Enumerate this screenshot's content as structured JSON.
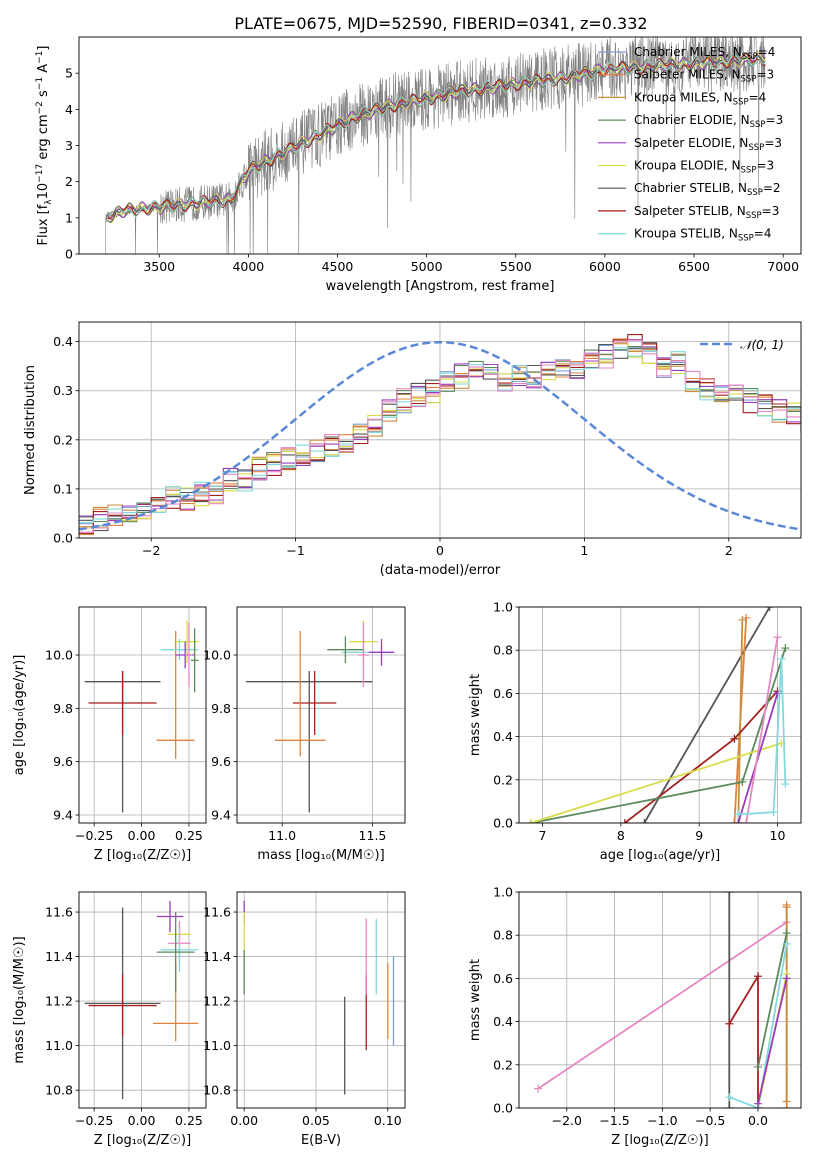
{
  "title": "PLATE=0675, MJD=52590, FIBERID=0341, z=0.332",
  "colors": {
    "Chabrier MILES": "#7f9fd0",
    "Salpeter MILES": "#e3823e",
    "Kroupa MILES": "#c88f3f",
    "Chabrier ELODIE": "#5d8a5d",
    "Salpeter ELODIE": "#9a3dbd",
    "Kroupa ELODIE": "#d9dd4a",
    "Chabrier STELIB": "#555555",
    "Salpeter STELIB": "#a31f1f",
    "Kroupa STELIB": "#82d9dd",
    "pink": "#e487c3",
    "data": "#808080"
  },
  "chart_data": [
    {
      "type": "line",
      "panel": "spectrum",
      "xlabel": "wavelength [Angstrom, rest frame]",
      "ylabel_main": "Flux [f",
      "ylabel_sub": "λ",
      "ylabel_rest": "10",
      "ylabel_exp1": "−17",
      "ylabel_mid": " erg cm",
      "ylabel_exp2": "−2",
      "ylabel_s": " s",
      "ylabel_exp3": "−1",
      "ylabel_A": " A",
      "ylabel_exp4": "−1",
      "ylabel_end": "]",
      "xlim": [
        3050,
        7100
      ],
      "ylim": [
        0,
        6
      ],
      "xticks": [
        3500,
        4000,
        4500,
        5000,
        5500,
        6000,
        6500,
        7000
      ],
      "yticks": [
        0,
        1,
        2,
        3,
        4,
        5
      ],
      "legend_position": "top-right",
      "legend": [
        {
          "name": "Chabrier MILES, N",
          "sub": "SSP",
          "suffix": "=4"
        },
        {
          "name": "Salpeter MILES, N",
          "sub": "SSP",
          "suffix": "=3"
        },
        {
          "name": "Kroupa MILES, N",
          "sub": "SSP",
          "suffix": "=4"
        },
        {
          "name": "Chabrier ELODIE, N",
          "sub": "SSP",
          "suffix": "=3"
        },
        {
          "name": "Salpeter ELODIE, N",
          "sub": "SSP",
          "suffix": "=3"
        },
        {
          "name": "Kroupa ELODIE, N",
          "sub": "SSP",
          "suffix": "=3"
        },
        {
          "name": "Chabrier STELIB, N",
          "sub": "SSP",
          "suffix": "=2"
        },
        {
          "name": "Salpeter STELIB, N",
          "sub": "SSP",
          "suffix": "=3"
        },
        {
          "name": "Kroupa STELIB, N",
          "sub": "SSP",
          "suffix": "=4"
        }
      ],
      "continuum": [
        [
          3200,
          1.0
        ],
        [
          3300,
          1.2
        ],
        [
          3500,
          1.3
        ],
        [
          3700,
          1.4
        ],
        [
          3900,
          1.5
        ],
        [
          4000,
          2.3
        ],
        [
          4200,
          2.8
        ],
        [
          4400,
          3.3
        ],
        [
          4600,
          3.8
        ],
        [
          4800,
          4.1
        ],
        [
          5000,
          4.3
        ],
        [
          5200,
          4.5
        ],
        [
          5500,
          4.7
        ],
        [
          5800,
          4.9
        ],
        [
          6000,
          5.1
        ],
        [
          6300,
          5.2
        ],
        [
          6600,
          5.3
        ],
        [
          6900,
          5.4
        ]
      ]
    },
    {
      "type": "line",
      "panel": "residual histogram",
      "xlabel": "(data-model)/error",
      "ylabel": "Normed distribution",
      "xlim": [
        -2.5,
        2.5
      ],
      "ylim": [
        0,
        0.44
      ],
      "xticks": [
        -2,
        -1,
        0,
        1,
        2
      ],
      "yticks": [
        0.0,
        0.1,
        0.2,
        0.3,
        0.4
      ],
      "legend_position": "top-right",
      "legend": [
        {
          "name": "𝒩(0, 1)"
        }
      ],
      "bin_width": 0.1,
      "bins_start": -2.5,
      "hist_envelope": [
        0.03,
        0.04,
        0.05,
        0.05,
        0.06,
        0.07,
        0.08,
        0.08,
        0.09,
        0.09,
        0.12,
        0.12,
        0.14,
        0.15,
        0.16,
        0.17,
        0.18,
        0.19,
        0.19,
        0.21,
        0.23,
        0.26,
        0.28,
        0.29,
        0.3,
        0.32,
        0.33,
        0.34,
        0.33,
        0.32,
        0.33,
        0.33,
        0.34,
        0.34,
        0.35,
        0.36,
        0.37,
        0.39,
        0.39,
        0.38,
        0.35,
        0.36,
        0.32,
        0.3,
        0.3,
        0.29,
        0.28,
        0.27,
        0.26,
        0.25,
        0.24,
        0.23,
        0.22,
        0.2,
        0.18,
        0.17,
        0.15,
        0.13,
        0.12,
        0.11,
        0.1,
        0.09,
        0.08,
        0.07,
        0.06,
        0.06,
        0.05,
        0.04,
        0.04,
        0.035,
        0.03,
        0.03,
        0.03,
        0.03,
        0.03,
        0.03,
        0.03,
        0.03,
        0.03,
        0.03
      ],
      "normal_curve": {
        "mean": 0,
        "sigma": 1
      }
    },
    {
      "type": "scatter",
      "panel": "age vs Z",
      "xlabel": "Z [log₁₀(Z/Z☉)]",
      "ylabel": "age  [log₁₀(age/yr)]",
      "xlim": [
        -0.33,
        0.34
      ],
      "ylim": [
        9.37,
        10.18
      ],
      "xticks": [
        -0.25,
        0.0,
        0.25
      ],
      "yticks": [
        9.4,
        9.6,
        9.8,
        10.0
      ],
      "points": [
        {
          "model": "Chabrier STELIB",
          "x": -0.1,
          "xerr": 0.2,
          "y": 9.9,
          "yerr": [
            0.49,
            0.04
          ]
        },
        {
          "model": "Salpeter STELIB",
          "x": -0.1,
          "xerr": 0.18,
          "y": 9.82,
          "yerr": 0.12
        },
        {
          "model": "Salpeter MILES",
          "x": 0.18,
          "xerr": 0.1,
          "y": 9.68,
          "yerr": [
            0.07,
            0.41
          ]
        },
        {
          "model": "Kroupa ELODIE",
          "x": 0.24,
          "xerr": 0.06,
          "y": 10.05,
          "yerr": 0.08
        },
        {
          "model": "Kroupa STELIB",
          "x": 0.2,
          "xerr": 0.1,
          "y": 10.02,
          "yerr": 0.04
        },
        {
          "model": "Salpeter ELODIE",
          "x": 0.23,
          "xerr": 0.05,
          "y": 10.0,
          "yerr": 0.05
        },
        {
          "model": "pink",
          "x": 0.25,
          "xerr": 0.02,
          "y": 10.0,
          "yerr": 0.12
        },
        {
          "model": "Chabrier ELODIE",
          "x": 0.28,
          "xerr": 0.02,
          "y": 9.98,
          "yerr": 0.12
        }
      ]
    },
    {
      "type": "scatter",
      "panel": "age vs mass",
      "xlabel": "mass [log₁₀(M/M☉)]",
      "xlim": [
        10.75,
        11.68
      ],
      "ylim": [
        9.37,
        10.18
      ],
      "xticks": [
        11.0,
        11.5
      ],
      "yticks": [
        9.4,
        9.6,
        9.8,
        10.0
      ],
      "points": [
        {
          "model": "Chabrier STELIB",
          "x": 11.15,
          "xerr": 0.35,
          "y": 9.9,
          "yerr": [
            0.49,
            0.04
          ]
        },
        {
          "model": "Salpeter STELIB",
          "x": 11.18,
          "xerr": 0.12,
          "y": 9.82,
          "yerr": 0.12
        },
        {
          "model": "Salpeter MILES",
          "x": 11.1,
          "xerr": 0.14,
          "y": 9.68,
          "yerr": [
            0.06,
            0.41
          ]
        },
        {
          "model": "Kroupa ELODIE",
          "x": 11.45,
          "xerr": 0.08,
          "y": 10.05,
          "yerr": 0.08
        },
        {
          "model": "Kroupa STELIB",
          "x": 11.45,
          "xerr": 0.12,
          "y": 10.01,
          "yerr": 0.05
        },
        {
          "model": "Salpeter ELODIE",
          "x": 11.55,
          "xerr": 0.07,
          "y": 10.01,
          "yerr": 0.05
        },
        {
          "model": "pink",
          "x": 11.45,
          "xerr": 0.03,
          "y": 10.0,
          "yerr": 0.12
        },
        {
          "model": "Chabrier ELODIE",
          "x": 11.35,
          "xerr": 0.1,
          "y": 10.02,
          "yerr": 0.05
        }
      ]
    },
    {
      "type": "line",
      "panel": "mass weight vs age",
      "xlabel": "age  [log₁₀(age/yr)]",
      "ylabel": "mass weight",
      "xlim": [
        6.7,
        10.3
      ],
      "ylim": [
        0,
        1.0
      ],
      "xticks": [
        7,
        8,
        9,
        10
      ],
      "yticks": [
        0.0,
        0.2,
        0.4,
        0.6,
        0.8,
        1.0
      ],
      "series": [
        {
          "model": "Chabrier STELIB",
          "x": [
            8.3,
            9.9
          ],
          "y": [
            0.0,
            1.0
          ]
        },
        {
          "model": "Salpeter MILES",
          "x": [
            9.45,
            9.6
          ],
          "y": [
            0.0,
            0.95
          ]
        },
        {
          "model": "Kroupa MILES",
          "x": [
            9.5,
            9.55
          ],
          "y": [
            0.0,
            0.94
          ]
        },
        {
          "model": "Salpeter STELIB",
          "x": [
            8.05,
            9.45,
            10.0
          ],
          "y": [
            0.0,
            0.39,
            0.61
          ]
        },
        {
          "model": "Chabrier ELODIE",
          "x": [
            6.85,
            9.55,
            10.1
          ],
          "y": [
            0.0,
            0.19,
            0.81
          ]
        },
        {
          "model": "Kroupa ELODIE",
          "x": [
            6.85,
            10.05
          ],
          "y": [
            0.0,
            0.37
          ]
        },
        {
          "model": "Salpeter ELODIE",
          "x": [
            9.5,
            10.0
          ],
          "y": [
            0.0,
            0.6
          ]
        },
        {
          "model": "pink",
          "x": [
            9.6,
            10.0
          ],
          "y": [
            0.0,
            0.86
          ]
        },
        {
          "model": "Kroupa STELIB",
          "x": [
            9.5,
            9.95,
            10.05,
            10.1
          ],
          "y": [
            0.04,
            0.05,
            0.76,
            0.18
          ]
        }
      ]
    },
    {
      "type": "scatter",
      "panel": "mass vs Z",
      "xlabel": "Z [log₁₀(Z/Z☉)]",
      "ylabel": "mass [log₁₀(M/M☉)]",
      "xlim": [
        -0.33,
        0.34
      ],
      "ylim": [
        10.72,
        11.69
      ],
      "xticks": [
        -0.25,
        0.0,
        0.25
      ],
      "yticks": [
        10.8,
        11.0,
        11.2,
        11.4,
        11.6
      ],
      "points": [
        {
          "model": "Chabrier STELIB",
          "x": -0.1,
          "xerr": 0.2,
          "y": 11.19,
          "yerr": 0.43
        },
        {
          "model": "Salpeter STELIB",
          "x": -0.1,
          "xerr": 0.18,
          "y": 11.18,
          "yerr": 0.14
        },
        {
          "model": "Salpeter MILES",
          "x": 0.18,
          "xerr": 0.12,
          "y": 11.1,
          "yerr": [
            0.08,
            0.28
          ]
        },
        {
          "model": "Salpeter ELODIE",
          "x": 0.15,
          "xerr": 0.07,
          "y": 11.58,
          "yerr": 0.07
        },
        {
          "model": "Kroupa ELODIE",
          "x": 0.2,
          "xerr": 0.06,
          "y": 11.5,
          "yerr": 0.05
        },
        {
          "model": "pink",
          "x": 0.2,
          "xerr": 0.06,
          "y": 11.46,
          "yerr": 0.1
        },
        {
          "model": "Kroupa STELIB",
          "x": 0.2,
          "xerr": 0.1,
          "y": 11.43,
          "yerr": 0.1
        },
        {
          "model": "Chabrier ELODIE",
          "x": 0.18,
          "xerr": 0.1,
          "y": 11.42,
          "yerr": 0.18
        }
      ]
    },
    {
      "type": "scatter",
      "panel": "mass vs E(B-V)",
      "xlabel": "E(B-V)",
      "xlim": [
        -0.005,
        0.112
      ],
      "ylim": [
        10.72,
        11.69
      ],
      "xticks": [
        0.0,
        0.05,
        0.1
      ],
      "xticklabels": [
        "0.00",
        "0.05",
        "0.10"
      ],
      "yticks": [
        10.8,
        11.0,
        11.2,
        11.4,
        11.6
      ],
      "points": [
        {
          "model": "Salpeter ELODIE",
          "x": 0.0,
          "y": 11.6,
          "yerr": 0.05
        },
        {
          "model": "Kroupa ELODIE",
          "x": 0.0,
          "y": 11.5,
          "yerr": 0.1
        },
        {
          "model": "Chabrier ELODIE",
          "x": 0.0,
          "y": 11.33,
          "yerr": 0.1
        },
        {
          "model": "Chabrier STELIB",
          "x": 0.07,
          "y": 11.0,
          "yerr": 0.22
        },
        {
          "model": "Salpeter STELIB",
          "x": 0.085,
          "y": 11.15,
          "yerr": 0.17
        },
        {
          "model": "pink",
          "x": 0.085,
          "y": 11.4,
          "yerr": 0.17
        },
        {
          "model": "Kroupa STELIB",
          "x": 0.092,
          "y": 11.4,
          "yerr": 0.17
        },
        {
          "model": "Salpeter MILES",
          "x": 0.1,
          "y": 11.2,
          "yerr": 0.17
        },
        {
          "model": "Chabrier MILES",
          "x": 0.104,
          "y": 11.2,
          "yerr": 0.2
        }
      ]
    },
    {
      "type": "line",
      "panel": "mass weight vs Z",
      "xlabel": "Z [log₁₀(Z/Z☉)]",
      "ylabel": "mass weight",
      "xlim": [
        -2.5,
        0.45
      ],
      "ylim": [
        0,
        1.0
      ],
      "xticks": [
        -2.0,
        -1.5,
        -1.0,
        -0.5,
        0.0
      ],
      "yticks": [
        0.0,
        0.2,
        0.4,
        0.6,
        0.8,
        1.0
      ],
      "series": [
        {
          "model": "pink",
          "x": [
            -2.3,
            0.3
          ],
          "y": [
            0.09,
            0.86
          ]
        },
        {
          "model": "Chabrier STELIB",
          "x": [
            -0.3,
            -0.3
          ],
          "y": [
            0.0,
            1.0
          ]
        },
        {
          "model": "Salpeter STELIB",
          "x": [
            -0.3,
            0.0,
            0.0
          ],
          "y": [
            0.39,
            0.61,
            0.0
          ]
        },
        {
          "model": "Salpeter MILES",
          "x": [
            0.3,
            0.3
          ],
          "y": [
            0.0,
            0.94
          ]
        },
        {
          "model": "Kroupa MILES",
          "x": [
            0.3,
            0.3
          ],
          "y": [
            0.03,
            0.93
          ]
        },
        {
          "model": "Chabrier ELODIE",
          "x": [
            0.0,
            0.3
          ],
          "y": [
            0.19,
            0.81
          ]
        },
        {
          "model": "Kroupa ELODIE",
          "x": [
            0.0,
            0.3
          ],
          "y": [
            0.0,
            0.62
          ]
        },
        {
          "model": "Kroupa STELIB",
          "x": [
            -0.3,
            0.0,
            0.3
          ],
          "y": [
            0.05,
            0.0,
            0.76
          ]
        },
        {
          "model": "Salpeter ELODIE",
          "x": [
            0.0,
            0.3
          ],
          "y": [
            0.02,
            0.6
          ]
        }
      ]
    }
  ]
}
